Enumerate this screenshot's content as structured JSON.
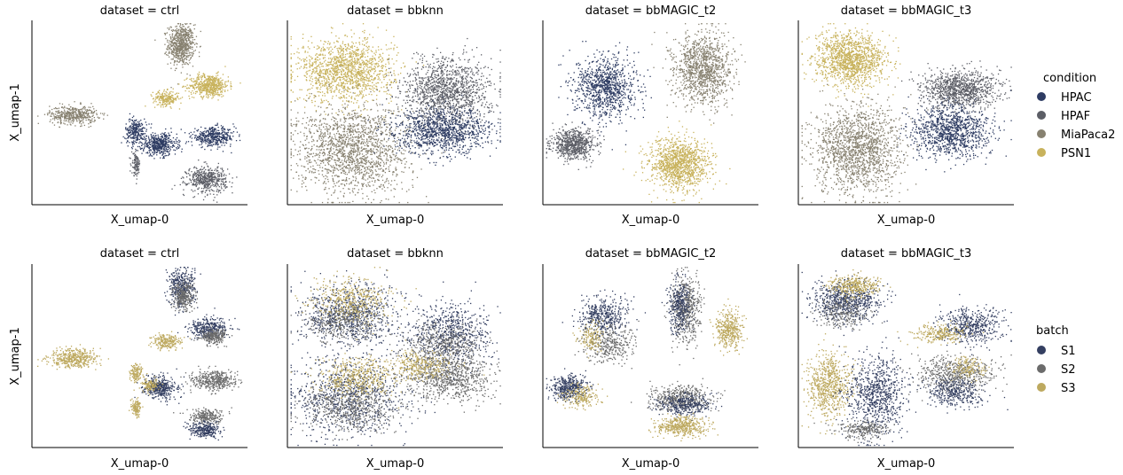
{
  "figure": {
    "rows": [
      {
        "hue_key": "condition",
        "panels": [
          {
            "title": "dataset = ctrl",
            "xlabel": "X_umap-0",
            "ylabel": "X_umap-1"
          },
          {
            "title": "dataset = bbknn",
            "xlabel": "X_umap-0",
            "ylabel": ""
          },
          {
            "title": "dataset = bbMAGIC_t2",
            "xlabel": "X_umap-0",
            "ylabel": ""
          },
          {
            "title": "dataset = bbMAGIC_t3",
            "xlabel": "X_umap-0",
            "ylabel": ""
          }
        ],
        "legend": {
          "title": "condition",
          "items": [
            {
              "label": "HPAC",
              "color": "#2e3c63"
            },
            {
              "label": "HPAF",
              "color": "#5c5e66"
            },
            {
              "label": "MiaPaca2",
              "color": "#878170"
            },
            {
              "label": "PSN1",
              "color": "#c8b25c"
            }
          ]
        }
      },
      {
        "hue_key": "batch",
        "panels": [
          {
            "title": "dataset = ctrl",
            "xlabel": "X_umap-0",
            "ylabel": "X_umap-1"
          },
          {
            "title": "dataset = bbknn",
            "xlabel": "X_umap-0",
            "ylabel": ""
          },
          {
            "title": "dataset = bbMAGIC_t2",
            "xlabel": "X_umap-0",
            "ylabel": ""
          },
          {
            "title": "dataset = bbMAGIC_t3",
            "xlabel": "X_umap-0",
            "ylabel": ""
          }
        ],
        "legend": {
          "title": "batch",
          "items": [
            {
              "label": "S1",
              "color": "#343f61"
            },
            {
              "label": "S2",
              "color": "#6b6b6b"
            },
            {
              "label": "S3",
              "color": "#bda95f"
            }
          ]
        }
      }
    ]
  },
  "chart_data": [
    {
      "type": "scatter",
      "title": "dataset = ctrl",
      "xlabel": "X_umap-0",
      "ylabel": "X_umap-1",
      "hue": "condition",
      "grid": false,
      "legend_position": "right",
      "clusters": [
        {
          "group": "MiaPaca2",
          "center": [
            0.69,
            0.87
          ],
          "spread": [
            0.06,
            0.11
          ],
          "n": 700
        },
        {
          "group": "PSN1",
          "center": [
            0.82,
            0.65
          ],
          "spread": [
            0.09,
            0.06
          ],
          "n": 550
        },
        {
          "group": "PSN1",
          "center": [
            0.62,
            0.58
          ],
          "spread": [
            0.06,
            0.04
          ],
          "n": 220
        },
        {
          "group": "MiaPaca2",
          "center": [
            0.19,
            0.49
          ],
          "spread": [
            0.11,
            0.05
          ],
          "n": 450
        },
        {
          "group": "HPAC",
          "center": [
            0.48,
            0.4
          ],
          "spread": [
            0.05,
            0.07
          ],
          "n": 260
        },
        {
          "group": "HPAC",
          "center": [
            0.59,
            0.33
          ],
          "spread": [
            0.08,
            0.06
          ],
          "n": 480
        },
        {
          "group": "HPAC",
          "center": [
            0.84,
            0.37
          ],
          "spread": [
            0.1,
            0.05
          ],
          "n": 420
        },
        {
          "group": "HPAF",
          "center": [
            0.48,
            0.22
          ],
          "spread": [
            0.02,
            0.06
          ],
          "n": 120
        },
        {
          "group": "HPAF",
          "center": [
            0.81,
            0.14
          ],
          "spread": [
            0.09,
            0.07
          ],
          "n": 500
        }
      ]
    },
    {
      "type": "scatter",
      "title": "dataset = bbknn",
      "xlabel": "X_umap-0",
      "ylabel": "",
      "hue": "condition",
      "grid": false,
      "legend_position": "right",
      "clusters": [
        {
          "group": "PSN1",
          "center": [
            0.27,
            0.73
          ],
          "spread": [
            0.22,
            0.17
          ],
          "n": 1400
        },
        {
          "group": "MiaPaca2",
          "center": [
            0.3,
            0.3
          ],
          "spread": [
            0.26,
            0.24
          ],
          "n": 1700
        },
        {
          "group": "HPAF",
          "center": [
            0.74,
            0.62
          ],
          "spread": [
            0.2,
            0.18
          ],
          "n": 1300
        },
        {
          "group": "HPAC",
          "center": [
            0.72,
            0.4
          ],
          "spread": [
            0.22,
            0.12
          ],
          "n": 1100
        }
      ]
    },
    {
      "type": "scatter",
      "title": "dataset = bbMAGIC_t2",
      "xlabel": "X_umap-0",
      "ylabel": "",
      "hue": "condition",
      "grid": false,
      "legend_position": "right",
      "clusters": [
        {
          "group": "HPAC",
          "center": [
            0.29,
            0.64
          ],
          "spread": [
            0.14,
            0.17
          ],
          "n": 1000
        },
        {
          "group": "HPAF",
          "center": [
            0.14,
            0.33
          ],
          "spread": [
            0.1,
            0.08
          ],
          "n": 700
        },
        {
          "group": "MiaPaca2",
          "center": [
            0.74,
            0.74
          ],
          "spread": [
            0.13,
            0.19
          ],
          "n": 1200
        },
        {
          "group": "PSN1",
          "center": [
            0.63,
            0.22
          ],
          "spread": [
            0.14,
            0.14
          ],
          "n": 1200
        }
      ]
    },
    {
      "type": "scatter",
      "title": "dataset = bbMAGIC_t3",
      "xlabel": "X_umap-0",
      "ylabel": "",
      "hue": "condition",
      "grid": false,
      "legend_position": "right",
      "clusters": [
        {
          "group": "PSN1",
          "center": [
            0.24,
            0.79
          ],
          "spread": [
            0.16,
            0.14
          ],
          "n": 1300
        },
        {
          "group": "HPAF",
          "center": [
            0.75,
            0.63
          ],
          "spread": [
            0.18,
            0.1
          ],
          "n": 1000
        },
        {
          "group": "HPAC",
          "center": [
            0.7,
            0.4
          ],
          "spread": [
            0.18,
            0.14
          ],
          "n": 1100
        },
        {
          "group": "MiaPaca2",
          "center": [
            0.27,
            0.3
          ],
          "spread": [
            0.2,
            0.24
          ],
          "n": 1600
        }
      ]
    },
    {
      "type": "scatter",
      "title": "dataset = ctrl",
      "xlabel": "X_umap-0",
      "ylabel": "X_umap-1",
      "hue": "batch",
      "grid": false,
      "legend_position": "right",
      "clusters": [
        {
          "group": "S1",
          "center": [
            0.69,
            0.87
          ],
          "spread": [
            0.06,
            0.11
          ],
          "n": 400
        },
        {
          "group": "S2",
          "center": [
            0.7,
            0.83
          ],
          "spread": [
            0.05,
            0.08
          ],
          "n": 300
        },
        {
          "group": "S1",
          "center": [
            0.82,
            0.65
          ],
          "spread": [
            0.09,
            0.06
          ],
          "n": 350
        },
        {
          "group": "S2",
          "center": [
            0.84,
            0.61
          ],
          "spread": [
            0.06,
            0.04
          ],
          "n": 250
        },
        {
          "group": "S3",
          "center": [
            0.62,
            0.58
          ],
          "spread": [
            0.06,
            0.04
          ],
          "n": 220
        },
        {
          "group": "S3",
          "center": [
            0.19,
            0.49
          ],
          "spread": [
            0.11,
            0.05
          ],
          "n": 450
        },
        {
          "group": "S3",
          "center": [
            0.48,
            0.41
          ],
          "spread": [
            0.03,
            0.05
          ],
          "n": 130
        },
        {
          "group": "S1",
          "center": [
            0.59,
            0.33
          ],
          "spread": [
            0.08,
            0.06
          ],
          "n": 400
        },
        {
          "group": "S3",
          "center": [
            0.55,
            0.34
          ],
          "spread": [
            0.04,
            0.04
          ],
          "n": 120
        },
        {
          "group": "S2",
          "center": [
            0.84,
            0.37
          ],
          "spread": [
            0.1,
            0.05
          ],
          "n": 420
        },
        {
          "group": "S3",
          "center": [
            0.48,
            0.22
          ],
          "spread": [
            0.02,
            0.06
          ],
          "n": 120
        },
        {
          "group": "S2",
          "center": [
            0.81,
            0.17
          ],
          "spread": [
            0.08,
            0.04
          ],
          "n": 250
        },
        {
          "group": "S1",
          "center": [
            0.8,
            0.1
          ],
          "spread": [
            0.07,
            0.04
          ],
          "n": 280
        }
      ]
    },
    {
      "type": "scatter",
      "title": "dataset = bbknn",
      "xlabel": "X_umap-0",
      "ylabel": "",
      "hue": "batch",
      "grid": false,
      "legend_position": "right",
      "clusters": [
        {
          "group": "S1",
          "center": [
            0.28,
            0.73
          ],
          "spread": [
            0.22,
            0.16
          ],
          "n": 800
        },
        {
          "group": "S3",
          "center": [
            0.3,
            0.8
          ],
          "spread": [
            0.18,
            0.12
          ],
          "n": 450
        },
        {
          "group": "S2",
          "center": [
            0.25,
            0.68
          ],
          "spread": [
            0.18,
            0.12
          ],
          "n": 350
        },
        {
          "group": "S1",
          "center": [
            0.28,
            0.28
          ],
          "spread": [
            0.26,
            0.22
          ],
          "n": 900
        },
        {
          "group": "S3",
          "center": [
            0.33,
            0.38
          ],
          "spread": [
            0.18,
            0.1
          ],
          "n": 500
        },
        {
          "group": "S2",
          "center": [
            0.3,
            0.22
          ],
          "spread": [
            0.22,
            0.14
          ],
          "n": 600
        },
        {
          "group": "S1",
          "center": [
            0.75,
            0.62
          ],
          "spread": [
            0.2,
            0.18
          ],
          "n": 700
        },
        {
          "group": "S2",
          "center": [
            0.72,
            0.55
          ],
          "spread": [
            0.18,
            0.14
          ],
          "n": 500
        },
        {
          "group": "S2",
          "center": [
            0.75,
            0.38
          ],
          "spread": [
            0.2,
            0.12
          ],
          "n": 700
        },
        {
          "group": "S3",
          "center": [
            0.62,
            0.45
          ],
          "spread": [
            0.14,
            0.08
          ],
          "n": 300
        }
      ]
    },
    {
      "type": "scatter",
      "title": "dataset = bbMAGIC_t2",
      "xlabel": "X_umap-0",
      "ylabel": "",
      "hue": "batch",
      "grid": false,
      "legend_position": "right",
      "clusters": [
        {
          "group": "S1",
          "center": [
            0.28,
            0.72
          ],
          "spread": [
            0.12,
            0.1
          ],
          "n": 450
        },
        {
          "group": "S2",
          "center": [
            0.3,
            0.56
          ],
          "spread": [
            0.12,
            0.1
          ],
          "n": 350
        },
        {
          "group": "S3",
          "center": [
            0.22,
            0.6
          ],
          "spread": [
            0.06,
            0.08
          ],
          "n": 150
        },
        {
          "group": "S1",
          "center": [
            0.12,
            0.33
          ],
          "spread": [
            0.08,
            0.07
          ],
          "n": 400
        },
        {
          "group": "S3",
          "center": [
            0.18,
            0.28
          ],
          "spread": [
            0.08,
            0.06
          ],
          "n": 200
        },
        {
          "group": "S2",
          "center": [
            0.66,
            0.76
          ],
          "spread": [
            0.07,
            0.18
          ],
          "n": 550
        },
        {
          "group": "S1",
          "center": [
            0.63,
            0.78
          ],
          "spread": [
            0.05,
            0.14
          ],
          "n": 300
        },
        {
          "group": "S3",
          "center": [
            0.86,
            0.65
          ],
          "spread": [
            0.06,
            0.1
          ],
          "n": 400
        },
        {
          "group": "S2",
          "center": [
            0.64,
            0.27
          ],
          "spread": [
            0.14,
            0.07
          ],
          "n": 500
        },
        {
          "group": "S1",
          "center": [
            0.66,
            0.24
          ],
          "spread": [
            0.12,
            0.06
          ],
          "n": 300
        },
        {
          "group": "S3",
          "center": [
            0.64,
            0.12
          ],
          "spread": [
            0.12,
            0.05
          ],
          "n": 450
        }
      ]
    },
    {
      "type": "scatter",
      "title": "dataset = bbMAGIC_t3",
      "xlabel": "X_umap-0",
      "ylabel": "",
      "hue": "batch",
      "grid": false,
      "legend_position": "right",
      "clusters": [
        {
          "group": "S1",
          "center": [
            0.22,
            0.8
          ],
          "spread": [
            0.16,
            0.11
          ],
          "n": 700
        },
        {
          "group": "S3",
          "center": [
            0.26,
            0.88
          ],
          "spread": [
            0.12,
            0.06
          ],
          "n": 350
        },
        {
          "group": "S2",
          "center": [
            0.2,
            0.74
          ],
          "spread": [
            0.12,
            0.08
          ],
          "n": 250
        },
        {
          "group": "S1",
          "center": [
            0.8,
            0.66
          ],
          "spread": [
            0.14,
            0.09
          ],
          "n": 500
        },
        {
          "group": "S3",
          "center": [
            0.66,
            0.62
          ],
          "spread": [
            0.12,
            0.05
          ],
          "n": 250
        },
        {
          "group": "S2",
          "center": [
            0.72,
            0.4
          ],
          "spread": [
            0.18,
            0.1
          ],
          "n": 600
        },
        {
          "group": "S3",
          "center": [
            0.78,
            0.44
          ],
          "spread": [
            0.08,
            0.06
          ],
          "n": 150
        },
        {
          "group": "S1",
          "center": [
            0.72,
            0.3
          ],
          "spread": [
            0.14,
            0.08
          ],
          "n": 350
        },
        {
          "group": "S3",
          "center": [
            0.14,
            0.34
          ],
          "spread": [
            0.1,
            0.18
          ],
          "n": 700
        },
        {
          "group": "S1",
          "center": [
            0.36,
            0.28
          ],
          "spread": [
            0.14,
            0.22
          ],
          "n": 800
        },
        {
          "group": "S2",
          "center": [
            0.3,
            0.1
          ],
          "spread": [
            0.12,
            0.05
          ],
          "n": 250
        }
      ]
    }
  ]
}
